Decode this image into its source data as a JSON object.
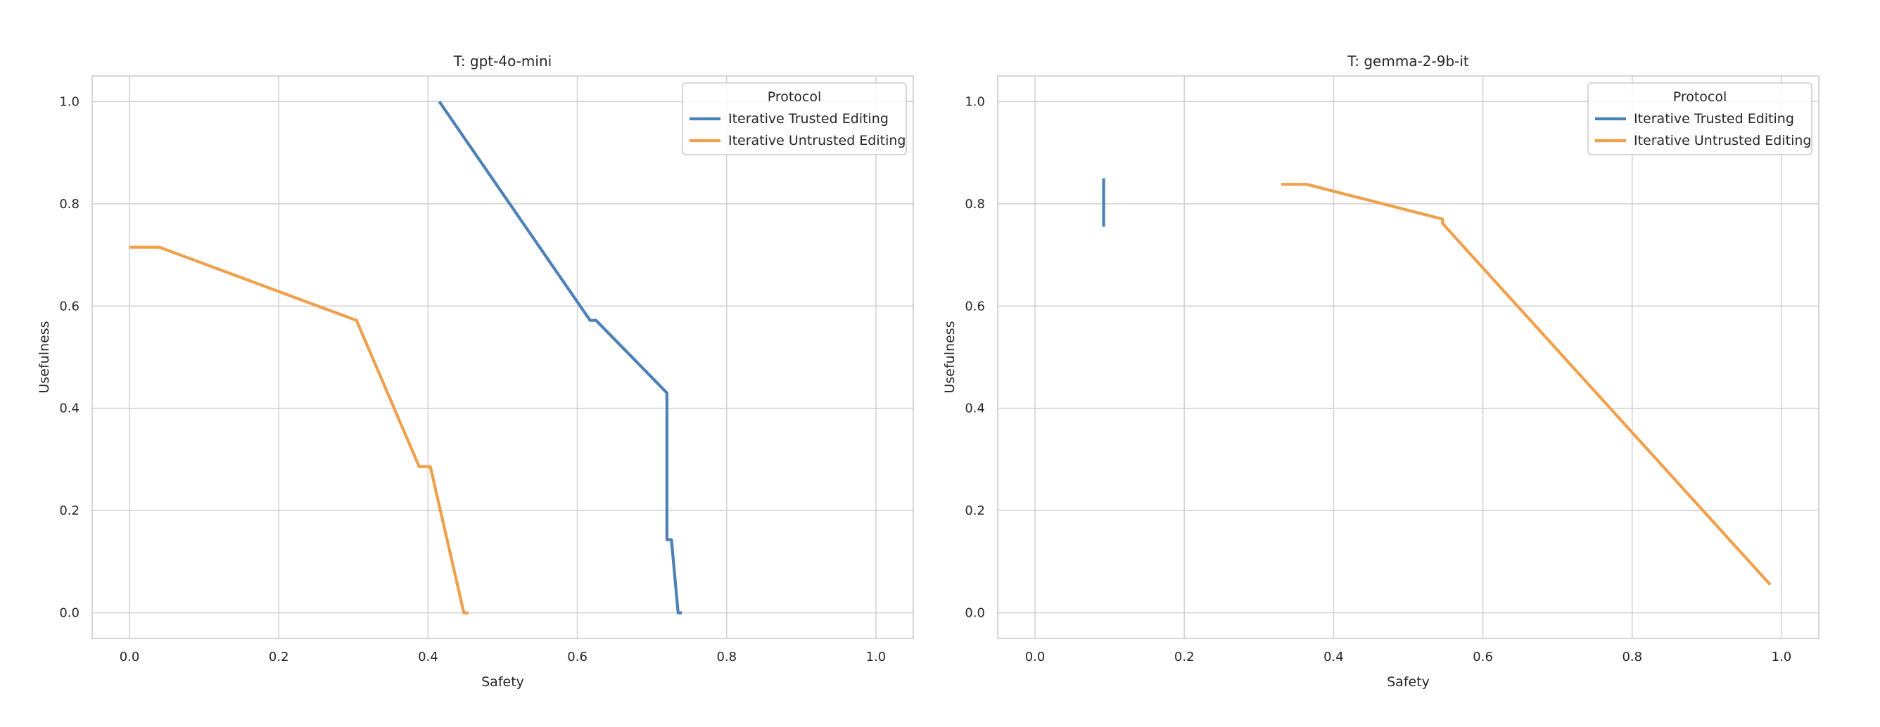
{
  "chart_data": [
    {
      "type": "line",
      "title": "T: gpt-4o-mini",
      "xlabel": "Safety",
      "ylabel": "Usefulness",
      "xlim": [
        -0.05,
        1.05
      ],
      "ylim": [
        -0.05,
        1.05
      ],
      "xticks": [
        "0.0",
        "0.2",
        "0.4",
        "0.6",
        "0.8",
        "1.0"
      ],
      "yticks": [
        "0.0",
        "0.2",
        "0.4",
        "0.6",
        "0.8",
        "1.0"
      ],
      "grid": true,
      "legend": {
        "title": "Protocol",
        "placement": "top-right"
      },
      "series": [
        {
          "name": "Iterative Trusted Editing",
          "color": "#4C81B8",
          "x": [
            0.415,
            0.617,
            0.625,
            0.72,
            0.72,
            0.726,
            0.735,
            0.74
          ],
          "y": [
            1.0,
            0.572,
            0.572,
            0.43,
            0.143,
            0.143,
            0.0,
            0.0
          ]
        },
        {
          "name": "Iterative Untrusted Editing",
          "color": "#F0A04B",
          "x": [
            0.0,
            0.04,
            0.304,
            0.388,
            0.403,
            0.448,
            0.454
          ],
          "y": [
            0.715,
            0.715,
            0.572,
            0.286,
            0.286,
            0.0,
            0.0
          ]
        }
      ]
    },
    {
      "type": "line",
      "title": "T: gemma-2-9b-it",
      "xlabel": "Safety",
      "ylabel": "Usefulness",
      "xlim": [
        -0.05,
        1.05
      ],
      "ylim": [
        -0.05,
        1.05
      ],
      "xticks": [
        "0.0",
        "0.2",
        "0.4",
        "0.6",
        "0.8",
        "1.0"
      ],
      "yticks": [
        "0.0",
        "0.2",
        "0.4",
        "0.6",
        "0.8",
        "1.0"
      ],
      "grid": true,
      "legend": {
        "title": "Protocol",
        "placement": "top-right"
      },
      "series": [
        {
          "name": "Iterative Trusted Editing",
          "color": "#4C81B8",
          "x": [
            0.092,
            0.092
          ],
          "y": [
            0.755,
            0.85
          ]
        },
        {
          "name": "Iterative Untrusted Editing",
          "color": "#F0A04B",
          "x": [
            0.33,
            0.364,
            0.546,
            0.546,
            0.55,
            0.985
          ],
          "y": [
            0.838,
            0.838,
            0.77,
            0.762,
            0.755,
            0.055
          ]
        }
      ]
    }
  ]
}
